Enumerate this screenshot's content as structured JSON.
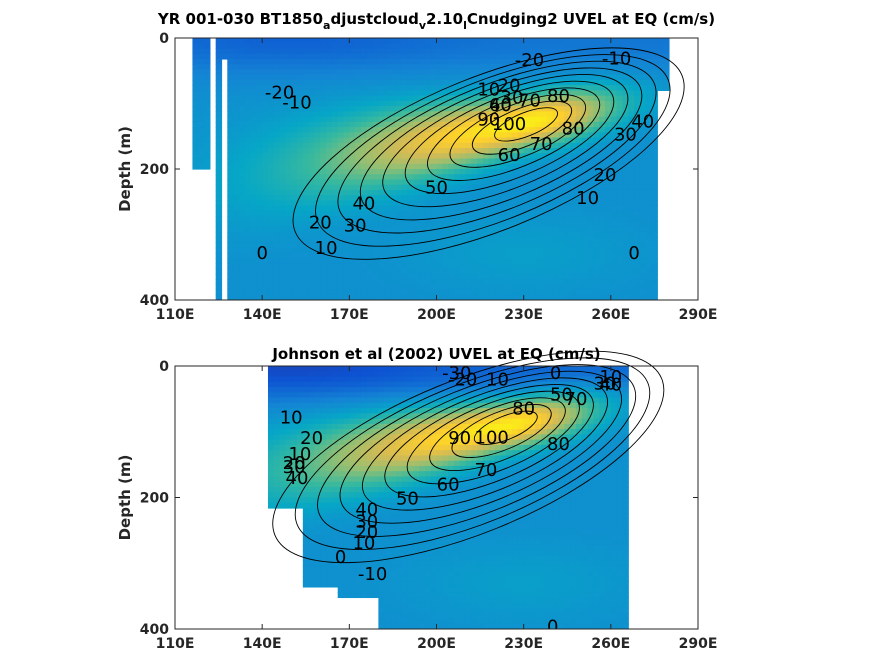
{
  "chart_data": [
    {
      "type": "heatmap",
      "title": "YR 001-030 BT1850_adjustcloud_v2.10_lCnudging2 UVEL at EQ (cm/s)",
      "title_parts": {
        "a": "YR 001-030 BT1850",
        "b": "a",
        "c": "djustcloud",
        "d": "v",
        "e": "2.10",
        "f": "l",
        "g": "Cnudging2 UVEL at EQ (cm/s)"
      },
      "xlabel": "",
      "ylabel": "Depth (m)",
      "xlim": [
        110,
        290
      ],
      "ylim": [
        400,
        0
      ],
      "x_ticks": [
        110,
        140,
        170,
        200,
        230,
        260,
        290
      ],
      "x_tick_labels": [
        "110E",
        "140E",
        "170E",
        "200E",
        "230E",
        "260E",
        "290E"
      ],
      "y_ticks": [
        0,
        200,
        400
      ],
      "y_tick_labels": [
        "0",
        "200",
        "400"
      ],
      "colormap": "parula",
      "contour_levels": [
        -30,
        -20,
        -10,
        0,
        10,
        20,
        30,
        40,
        50,
        60,
        70,
        80,
        90,
        100
      ],
      "features": {
        "core_lon": 232,
        "core_depth": 128,
        "core_speed": 100,
        "surface_westward_min": -20,
        "data_lon_range": [
          116,
          279
        ]
      },
      "contour_labels": [
        {
          "text": "-20",
          "lon": 232,
          "depth": 35
        },
        {
          "text": "-10",
          "lon": 262,
          "depth": 33
        },
        {
          "text": "-20",
          "lon": 146,
          "depth": 85
        },
        {
          "text": "-10",
          "lon": 152,
          "depth": 100
        },
        {
          "text": "10",
          "lon": 218,
          "depth": 80
        },
        {
          "text": "20",
          "lon": 225,
          "depth": 74
        },
        {
          "text": "30",
          "lon": 226,
          "depth": 92
        },
        {
          "text": "40",
          "lon": 222,
          "depth": 104
        },
        {
          "text": "60",
          "lon": 222,
          "depth": 104
        },
        {
          "text": "70",
          "lon": 232,
          "depth": 97
        },
        {
          "text": "80",
          "lon": 242,
          "depth": 90
        },
        {
          "text": "90",
          "lon": 218,
          "depth": 126
        },
        {
          "text": "100",
          "lon": 225,
          "depth": 133
        },
        {
          "text": "80",
          "lon": 247,
          "depth": 140
        },
        {
          "text": "70",
          "lon": 236,
          "depth": 163
        },
        {
          "text": "60",
          "lon": 225,
          "depth": 180
        },
        {
          "text": "50",
          "lon": 200,
          "depth": 230
        },
        {
          "text": "40",
          "lon": 175,
          "depth": 254
        },
        {
          "text": "30",
          "lon": 172,
          "depth": 288
        },
        {
          "text": "20",
          "lon": 258,
          "depth": 211
        },
        {
          "text": "10",
          "lon": 252,
          "depth": 246
        },
        {
          "text": "30",
          "lon": 265,
          "depth": 149
        },
        {
          "text": "40",
          "lon": 271,
          "depth": 129
        },
        {
          "text": "20",
          "lon": 160,
          "depth": 283
        },
        {
          "text": "10",
          "lon": 162,
          "depth": 322
        },
        {
          "text": "0",
          "lon": 140,
          "depth": 330
        },
        {
          "text": "0",
          "lon": 268,
          "depth": 330
        }
      ]
    },
    {
      "type": "heatmap",
      "title": "Johnson et al (2002) UVEL at EQ (cm/s)",
      "xlabel": "",
      "ylabel": "Depth (m)",
      "xlim": [
        110,
        290
      ],
      "ylim": [
        400,
        0
      ],
      "x_ticks": [
        110,
        140,
        170,
        200,
        230,
        260,
        290
      ],
      "x_tick_labels": [
        "110E",
        "140E",
        "170E",
        "200E",
        "230E",
        "260E",
        "290E"
      ],
      "y_ticks": [
        0,
        200,
        400
      ],
      "y_tick_labels": [
        "0",
        "200",
        "400"
      ],
      "colormap": "parula",
      "contour_levels": [
        -30,
        -20,
        -10,
        0,
        10,
        20,
        30,
        40,
        50,
        60,
        70,
        80,
        90,
        100
      ],
      "features": {
        "core_lon": 225,
        "core_depth": 90,
        "core_speed": 100,
        "surface_westward_min": -30,
        "data_lon_range": [
          143,
          265
        ]
      },
      "contour_labels": [
        {
          "text": "-30",
          "lon": 207,
          "depth": 12
        },
        {
          "text": "-20",
          "lon": 209,
          "depth": 22
        },
        {
          "text": "10",
          "lon": 221,
          "depth": 22
        },
        {
          "text": "0",
          "lon": 241,
          "depth": 12
        },
        {
          "text": "10",
          "lon": 260,
          "depth": 18
        },
        {
          "text": "50",
          "lon": 243,
          "depth": 45
        },
        {
          "text": "40",
          "lon": 260,
          "depth": 30
        },
        {
          "text": "30",
          "lon": 258,
          "depth": 28
        },
        {
          "text": "70",
          "lon": 248,
          "depth": 52
        },
        {
          "text": "80",
          "lon": 230,
          "depth": 66
        },
        {
          "text": "90",
          "lon": 208,
          "depth": 111
        },
        {
          "text": "100",
          "lon": 219,
          "depth": 110
        },
        {
          "text": "80",
          "lon": 242,
          "depth": 120
        },
        {
          "text": "70",
          "lon": 217,
          "depth": 160
        },
        {
          "text": "60",
          "lon": 204,
          "depth": 182
        },
        {
          "text": "50",
          "lon": 190,
          "depth": 203
        },
        {
          "text": "10",
          "lon": 150,
          "depth": 80
        },
        {
          "text": "20",
          "lon": 157,
          "depth": 111
        },
        {
          "text": "10",
          "lon": 153,
          "depth": 135
        },
        {
          "text": "20",
          "lon": 151,
          "depth": 149
        },
        {
          "text": "30",
          "lon": 151,
          "depth": 155
        },
        {
          "text": "40",
          "lon": 152,
          "depth": 172
        },
        {
          "text": "40",
          "lon": 176,
          "depth": 220
        },
        {
          "text": "30",
          "lon": 176,
          "depth": 238
        },
        {
          "text": "20",
          "lon": 176,
          "depth": 254
        },
        {
          "text": "10",
          "lon": 175,
          "depth": 271
        },
        {
          "text": "0",
          "lon": 167,
          "depth": 292
        },
        {
          "text": "-10",
          "lon": 178,
          "depth": 318
        },
        {
          "text": "0",
          "lon": 240,
          "depth": 398
        }
      ]
    }
  ]
}
